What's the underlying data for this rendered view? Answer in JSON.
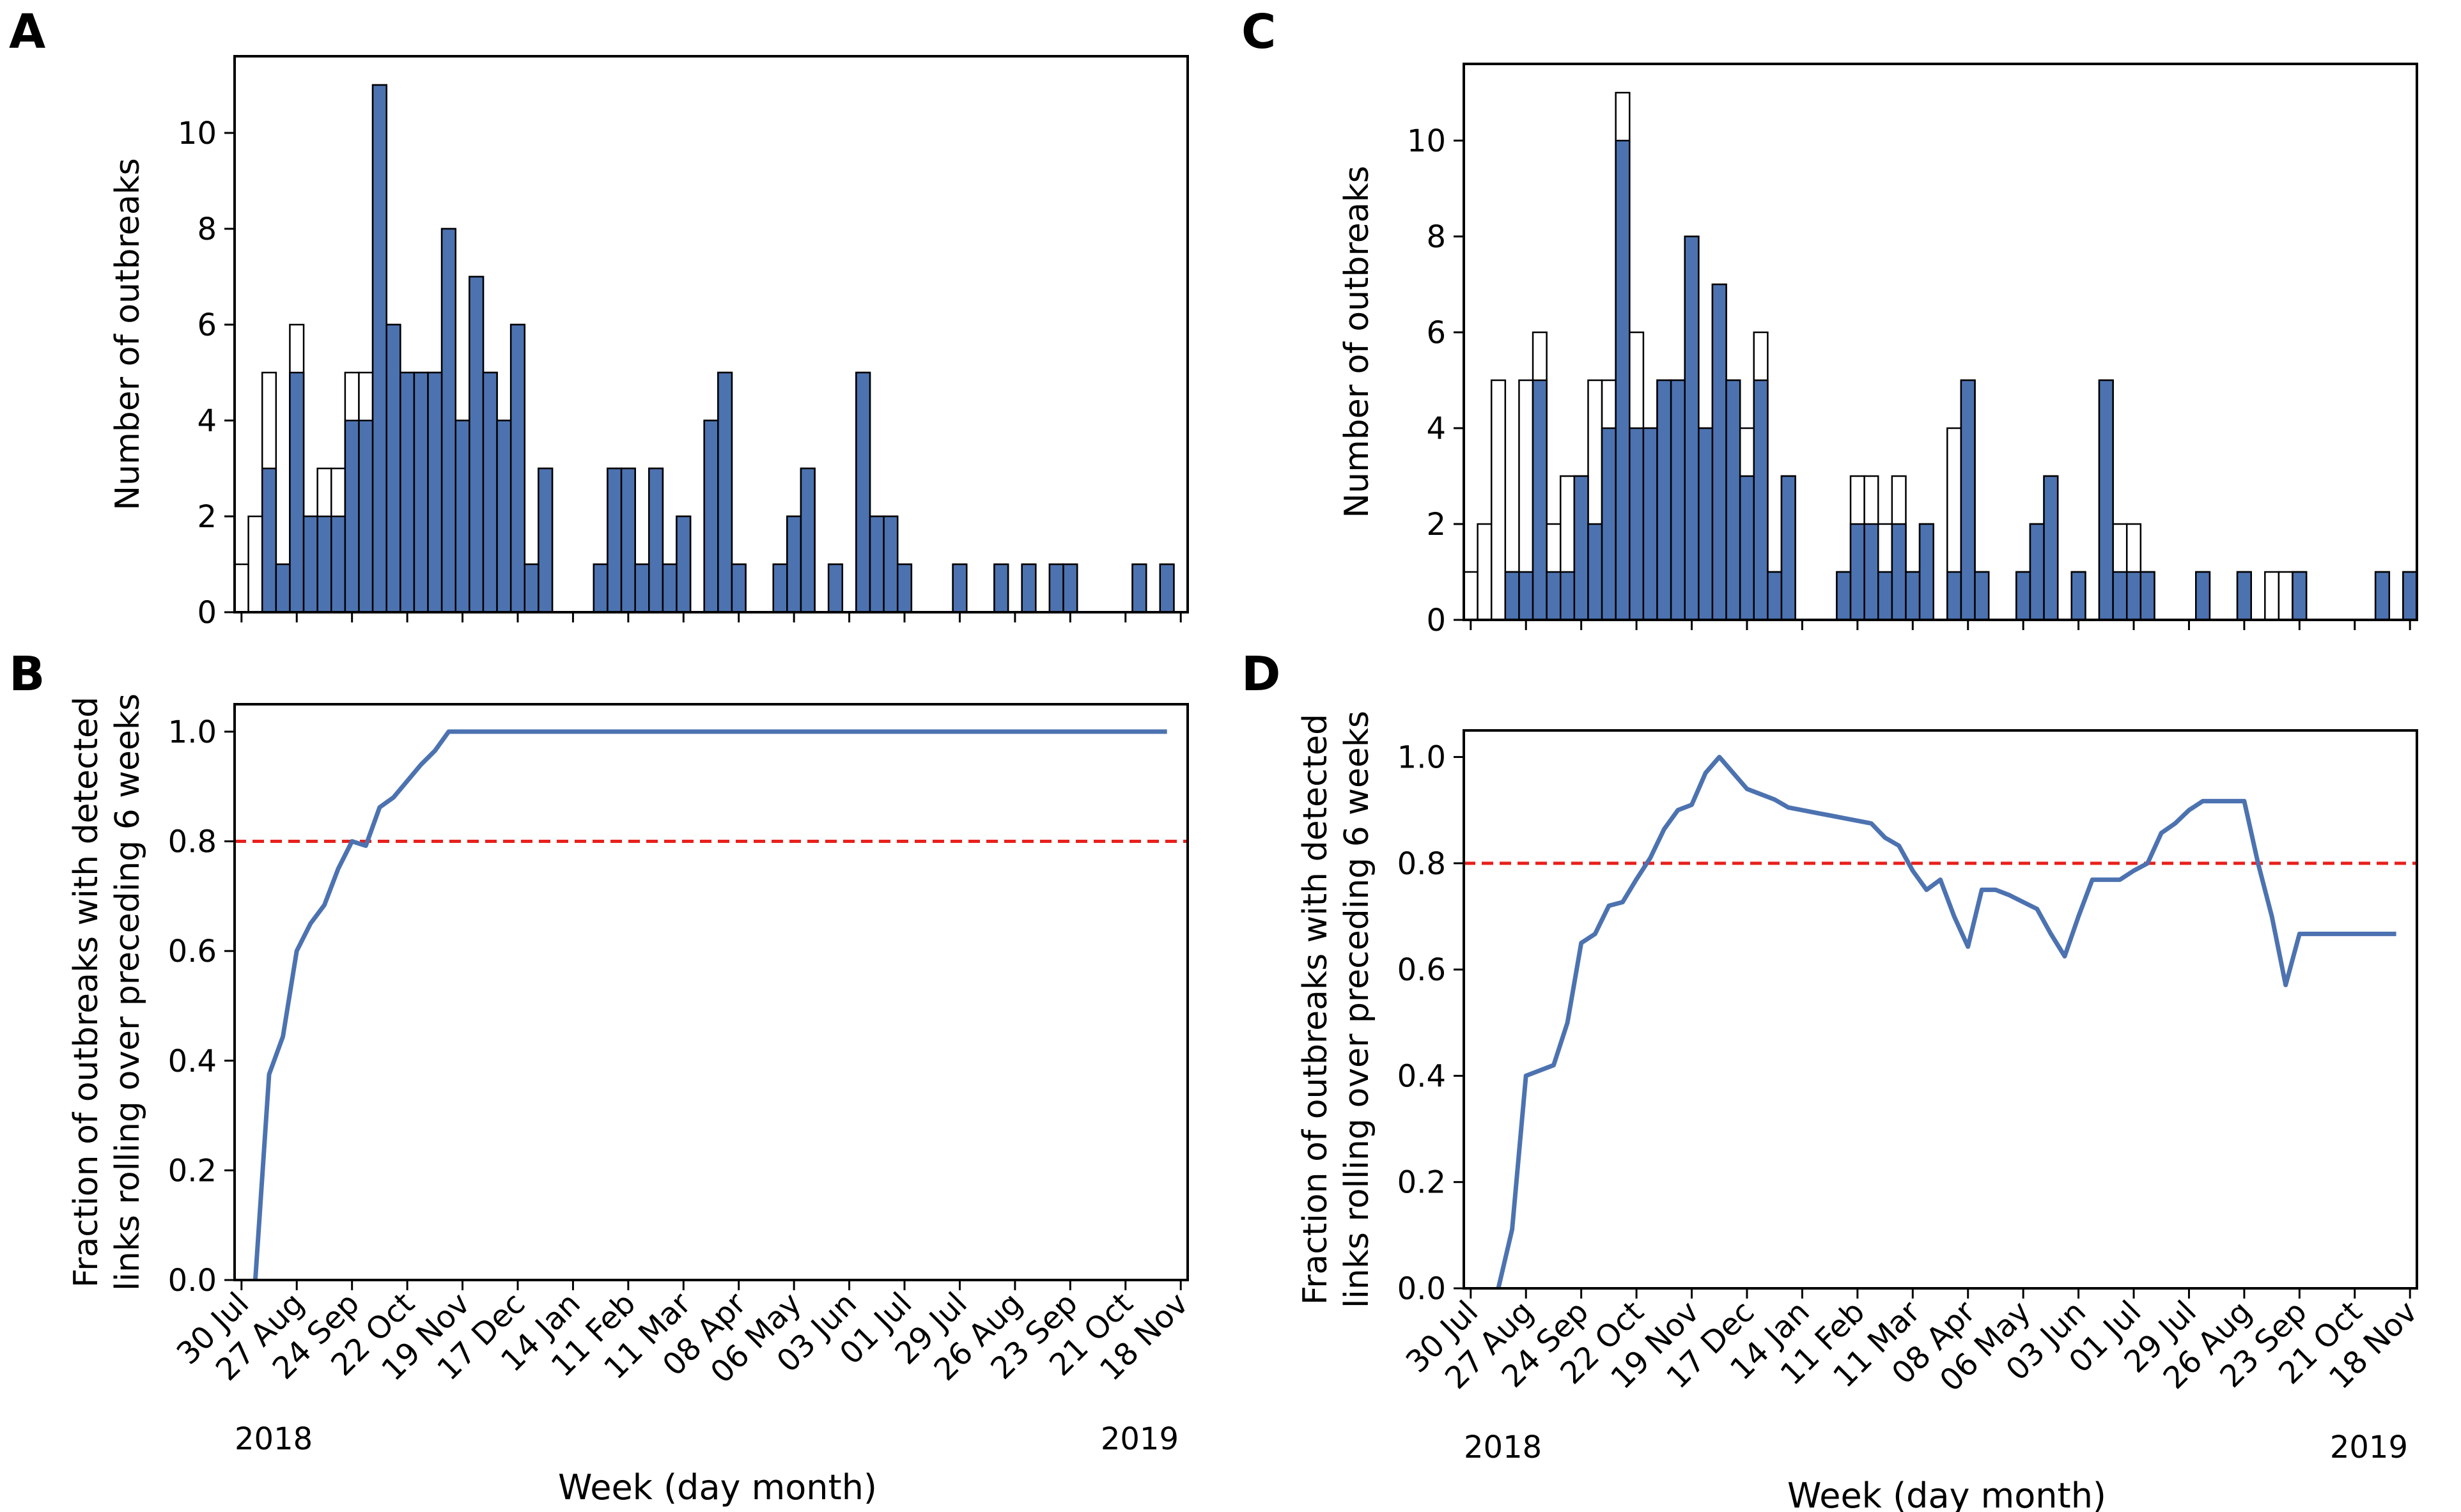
{
  "figure": {
    "panel_labels": [
      "A",
      "B",
      "C",
      "D"
    ],
    "xlabel": "Week (day month)",
    "year_start": "2018",
    "year_end": "2019",
    "ylabel_hist": "Number of outbreaks",
    "ylabel_frac_line1": "Fraction of outbreaks with detected",
    "ylabel_frac_line2": "links rolling over preceding 6 weeks",
    "week_ticks": [
      "30 Jul",
      "27 Aug",
      "24 Sep",
      "22 Oct",
      "19 Nov",
      "17 Dec",
      "14 Jan",
      "11 Feb",
      "11 Mar",
      "08 Apr",
      "06 May",
      "03 Jun",
      "01 Jul",
      "29 Jul",
      "26 Aug",
      "23 Sep",
      "21 Oct",
      "18 Nov"
    ],
    "colors": {
      "bar_fill": "#4c72b0",
      "line": "#4c72b0",
      "threshold": "#e8201c",
      "axis": "#000000"
    }
  },
  "chart_data": [
    {
      "panel": "A",
      "type": "bar",
      "stacked_overlay": true,
      "ylabel": "Number of outbreaks",
      "xlabel": "",
      "ylim": [
        0,
        11.6
      ],
      "yticks": [
        0,
        2,
        4,
        6,
        8,
        10
      ],
      "week_index_range": [
        -0.5,
        68.5
      ],
      "series": [
        {
          "name": "total",
          "values": [
            1,
            2,
            5,
            1,
            6,
            2,
            3,
            3,
            5,
            5,
            11,
            6,
            5,
            5,
            5,
            8,
            4,
            7,
            5,
            4,
            6,
            1,
            3,
            0,
            0,
            0,
            1,
            3,
            3,
            1,
            3,
            1,
            2,
            0,
            4,
            5,
            1,
            0,
            0,
            1,
            2,
            3,
            0,
            1,
            0,
            5,
            2,
            2,
            1,
            0,
            0,
            0,
            1,
            0,
            0,
            1,
            0,
            1,
            0,
            1,
            1,
            0,
            0,
            0,
            0,
            1,
            0,
            1,
            0
          ]
        },
        {
          "name": "detected",
          "values": [
            0,
            0,
            3,
            1,
            5,
            2,
            2,
            2,
            4,
            4,
            11,
            6,
            5,
            5,
            5,
            8,
            4,
            7,
            5,
            4,
            6,
            1,
            3,
            0,
            0,
            0,
            1,
            3,
            3,
            1,
            3,
            1,
            2,
            0,
            4,
            5,
            1,
            0,
            0,
            1,
            2,
            3,
            0,
            1,
            0,
            5,
            2,
            2,
            1,
            0,
            0,
            0,
            1,
            0,
            0,
            1,
            0,
            1,
            0,
            1,
            1,
            0,
            0,
            0,
            0,
            1,
            0,
            1,
            0
          ]
        }
      ]
    },
    {
      "panel": "B",
      "type": "line",
      "ylabel": "Fraction of outbreaks with detected links rolling over preceding 6 weeks",
      "xlabel": "Week (day month)",
      "ylim": [
        0,
        1.05
      ],
      "yticks": [
        0.0,
        0.2,
        0.4,
        0.6,
        0.8,
        1.0
      ],
      "threshold": 0.8,
      "series": [
        {
          "name": "fraction",
          "x": [
            1,
            2,
            3,
            4,
            5,
            6,
            7,
            8,
            9,
            10,
            11,
            12,
            13,
            14,
            15,
            16,
            67
          ],
          "y": [
            0.0,
            0.375,
            0.444,
            0.6,
            0.65,
            0.684,
            0.75,
            0.8,
            0.792,
            0.862,
            0.88,
            0.91,
            0.94,
            0.965,
            1.0,
            1.0,
            1.0
          ]
        }
      ]
    },
    {
      "panel": "C",
      "type": "bar",
      "stacked_overlay": true,
      "ylabel": "Number of outbreaks",
      "xlabel": "",
      "ylim": [
        0,
        11.6
      ],
      "yticks": [
        0,
        2,
        4,
        6,
        8,
        10
      ],
      "week_index_range": [
        -0.5,
        68.5
      ],
      "series": [
        {
          "name": "total",
          "values": [
            1,
            2,
            5,
            1,
            5,
            6,
            2,
            3,
            3,
            5,
            5,
            11,
            6,
            4,
            5,
            5,
            8,
            4,
            7,
            5,
            4,
            6,
            1,
            3,
            0,
            0,
            0,
            1,
            3,
            3,
            2,
            3,
            1,
            2,
            0,
            4,
            5,
            1,
            0,
            0,
            1,
            2,
            3,
            0,
            1,
            0,
            5,
            2,
            2,
            1,
            0,
            0,
            0,
            1,
            0,
            0,
            1,
            0,
            1,
            1,
            1,
            0,
            0,
            0,
            0,
            0,
            1,
            0,
            1
          ]
        },
        {
          "name": "detected",
          "values": [
            0,
            0,
            0,
            1,
            1,
            5,
            1,
            1,
            3,
            2,
            4,
            10,
            4,
            4,
            5,
            5,
            8,
            4,
            7,
            5,
            3,
            5,
            1,
            3,
            0,
            0,
            0,
            1,
            2,
            2,
            1,
            2,
            1,
            2,
            0,
            1,
            5,
            1,
            0,
            0,
            1,
            2,
            3,
            0,
            1,
            0,
            5,
            1,
            1,
            1,
            0,
            0,
            0,
            1,
            0,
            0,
            1,
            0,
            0,
            0,
            1,
            0,
            0,
            0,
            0,
            0,
            1,
            0,
            1
          ]
        }
      ]
    },
    {
      "panel": "D",
      "type": "line",
      "ylabel": "Fraction of outbreaks with detected links rolling over preceding 6 weeks",
      "xlabel": "Week (day month)",
      "ylim": [
        0,
        1.05
      ],
      "yticks": [
        0.0,
        0.2,
        0.4,
        0.6,
        0.8,
        1.0
      ],
      "threshold": 0.8,
      "series": [
        {
          "name": "fraction",
          "x": [
            2,
            3,
            4,
            5,
            6,
            7,
            8,
            9,
            10,
            11,
            12,
            13,
            14,
            15,
            16,
            17,
            18,
            19,
            20,
            21,
            22,
            23,
            24,
            25,
            26,
            27,
            28,
            29,
            30,
            31,
            32,
            33,
            34,
            35,
            36,
            37,
            38,
            39,
            40,
            41,
            42,
            43,
            44,
            45,
            46,
            47,
            48,
            49,
            50,
            51,
            52,
            53,
            54,
            55,
            56,
            57,
            58,
            59,
            60,
            61,
            62,
            63,
            64,
            65,
            66,
            67
          ],
          "y": [
            0.0,
            0.111,
            0.4,
            0.41,
            0.42,
            0.5,
            0.65,
            0.667,
            0.72,
            0.727,
            0.77,
            0.81,
            0.864,
            0.9,
            0.91,
            0.97,
            1.0,
            0.97,
            0.94,
            0.93,
            0.92,
            0.905,
            0.9,
            0.895,
            0.89,
            0.885,
            0.88,
            0.875,
            0.848,
            0.833,
            0.786,
            0.75,
            0.769,
            0.7,
            0.643,
            0.75,
            0.75,
            0.74,
            0.727,
            0.714,
            0.667,
            0.625,
            0.7,
            0.769,
            0.769,
            0.769,
            0.786,
            0.8,
            0.857,
            0.875,
            0.9,
            0.917,
            0.917,
            0.917,
            0.917,
            0.8,
            0.7,
            0.571,
            0.667,
            0.667,
            0.667,
            0.667,
            0.667,
            0.667,
            0.667,
            0.667
          ]
        }
      ]
    }
  ]
}
